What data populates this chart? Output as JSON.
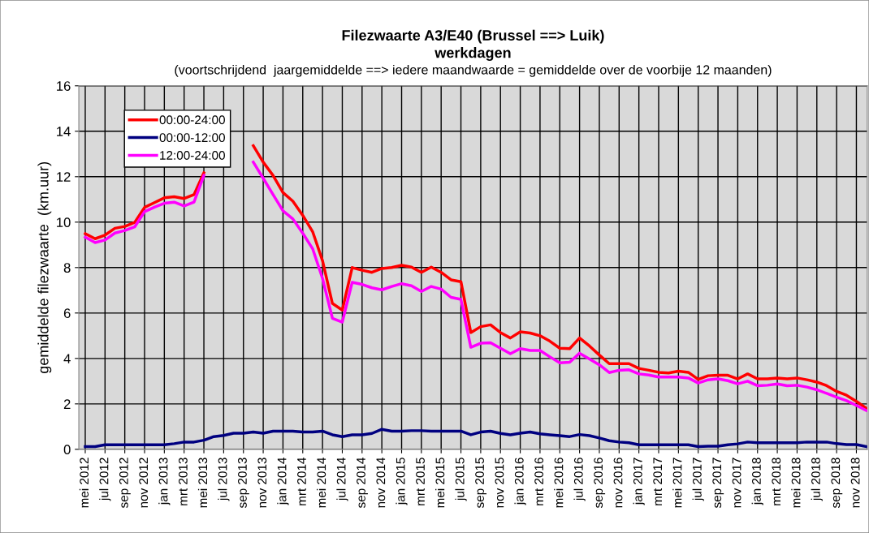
{
  "chart_data": {
    "type": "line",
    "title": "Filezwaarte A3/E40 (Brussel ==> Luik)\nwerkdagen",
    "subtitle": "(voortschrijdend  jaargemiddelde ==> iedere maandwaarde = gemiddelde over de voorbije 12 maanden)",
    "ylabel": "gemiddelde filezwaarte  (km.uur)",
    "categories": [
      "mei 2012",
      null,
      "jul 2012",
      null,
      "sep 2012",
      null,
      "nov 2012",
      null,
      "jan 2013",
      null,
      "mrt 2013",
      null,
      "mei 2013",
      null,
      "jul 2013",
      null,
      "sep 2013",
      null,
      "nov 2013",
      null,
      "jan 2014",
      null,
      "mrt 2014",
      null,
      "mei 2014",
      null,
      "jul 2014",
      null,
      "sep 2014",
      null,
      "nov 2014",
      null,
      "jan 2015",
      null,
      "mrt 2015",
      null,
      "mei 2015",
      null,
      "jul 2015",
      null,
      "sep 2015",
      null,
      "nov 2015",
      null,
      "jan 2016",
      null,
      "mrt 2016",
      null,
      "mei 2016",
      null,
      "jul 2016",
      null,
      "sep 2016",
      null,
      "nov 2016",
      null,
      "jan 2017",
      null,
      "mrt 2017",
      null,
      "mei 2017",
      null,
      "jul 2017",
      null,
      "sep 2017",
      null,
      "nov 2017",
      null,
      "jan 2018",
      null,
      "mrt 2018",
      null,
      "mei 2018",
      null,
      "jul 2018",
      null,
      "sep 2018",
      null,
      "nov 2018",
      null
    ],
    "series": [
      {
        "name": "00:00-24:00",
        "color": "#ff0000",
        "values": [
          9.49,
          9.27,
          9.43,
          9.73,
          9.81,
          9.99,
          10.65,
          10.86,
          11.07,
          11.12,
          11.04,
          11.21,
          12.17,
          null,
          null,
          null,
          null,
          13.36,
          12.64,
          12.05,
          11.3,
          10.92,
          10.3,
          9.58,
          8.3,
          6.42,
          6.13,
          8.0,
          7.88,
          7.79,
          7.96,
          8.0,
          8.1,
          8.02,
          7.79,
          8.02,
          7.79,
          7.46,
          7.38,
          5.14,
          5.4,
          5.48,
          5.14,
          4.9,
          5.17,
          5.12,
          5.0,
          4.76,
          4.45,
          4.43,
          4.9,
          4.55,
          4.15,
          3.77,
          3.77,
          3.77,
          3.56,
          3.48,
          3.39,
          3.36,
          3.44,
          3.39,
          3.08,
          3.24,
          3.26,
          3.26,
          3.1,
          3.32,
          3.1,
          3.1,
          3.14,
          3.1,
          3.14,
          3.06,
          2.96,
          2.8,
          2.55,
          2.38,
          2.11,
          1.81
        ]
      },
      {
        "name": "00:00-12:00",
        "color": "#000080",
        "values": [
          0.12,
          0.12,
          0.2,
          0.2,
          0.2,
          0.2,
          0.2,
          0.2,
          0.2,
          0.25,
          0.32,
          0.32,
          0.4,
          0.56,
          0.61,
          0.71,
          0.71,
          0.76,
          0.71,
          0.8,
          0.8,
          0.8,
          0.76,
          0.76,
          0.8,
          0.64,
          0.56,
          0.64,
          0.64,
          0.7,
          0.88,
          0.8,
          0.8,
          0.82,
          0.82,
          0.8,
          0.8,
          0.8,
          0.8,
          0.64,
          0.76,
          0.8,
          0.7,
          0.64,
          0.71,
          0.76,
          0.68,
          0.64,
          0.6,
          0.56,
          0.65,
          0.6,
          0.5,
          0.38,
          0.32,
          0.29,
          0.2,
          0.2,
          0.2,
          0.2,
          0.2,
          0.2,
          0.12,
          0.14,
          0.14,
          0.2,
          0.24,
          0.32,
          0.29,
          0.29,
          0.29,
          0.29,
          0.29,
          0.32,
          0.32,
          0.32,
          0.25,
          0.21,
          0.21,
          0.12
        ]
      },
      {
        "name": "12:00-24:00",
        "color": "#ff00ff",
        "values": [
          9.34,
          9.1,
          9.21,
          9.52,
          9.63,
          9.79,
          10.46,
          10.66,
          10.83,
          10.88,
          10.71,
          10.88,
          12.05,
          null,
          null,
          null,
          null,
          12.64,
          11.93,
          11.21,
          10.5,
          10.14,
          9.51,
          8.83,
          7.52,
          5.77,
          5.6,
          7.35,
          7.26,
          7.11,
          7.02,
          7.17,
          7.29,
          7.2,
          6.95,
          7.17,
          7.05,
          6.69,
          6.6,
          4.49,
          4.67,
          4.69,
          4.45,
          4.21,
          4.43,
          4.35,
          4.35,
          4.07,
          3.81,
          3.83,
          4.23,
          3.98,
          3.72,
          3.38,
          3.48,
          3.5,
          3.32,
          3.27,
          3.18,
          3.18,
          3.18,
          3.14,
          2.92,
          3.06,
          3.1,
          3.02,
          2.88,
          3.0,
          2.8,
          2.82,
          2.88,
          2.8,
          2.82,
          2.74,
          2.62,
          2.46,
          2.29,
          2.14,
          1.93,
          1.71
        ]
      }
    ],
    "ylim": [
      0,
      16
    ],
    "yticks": [
      0,
      2,
      4,
      6,
      8,
      10,
      12,
      14,
      16
    ],
    "grid": true,
    "legend": "top left",
    "marker": "none",
    "line_style": "solid"
  }
}
